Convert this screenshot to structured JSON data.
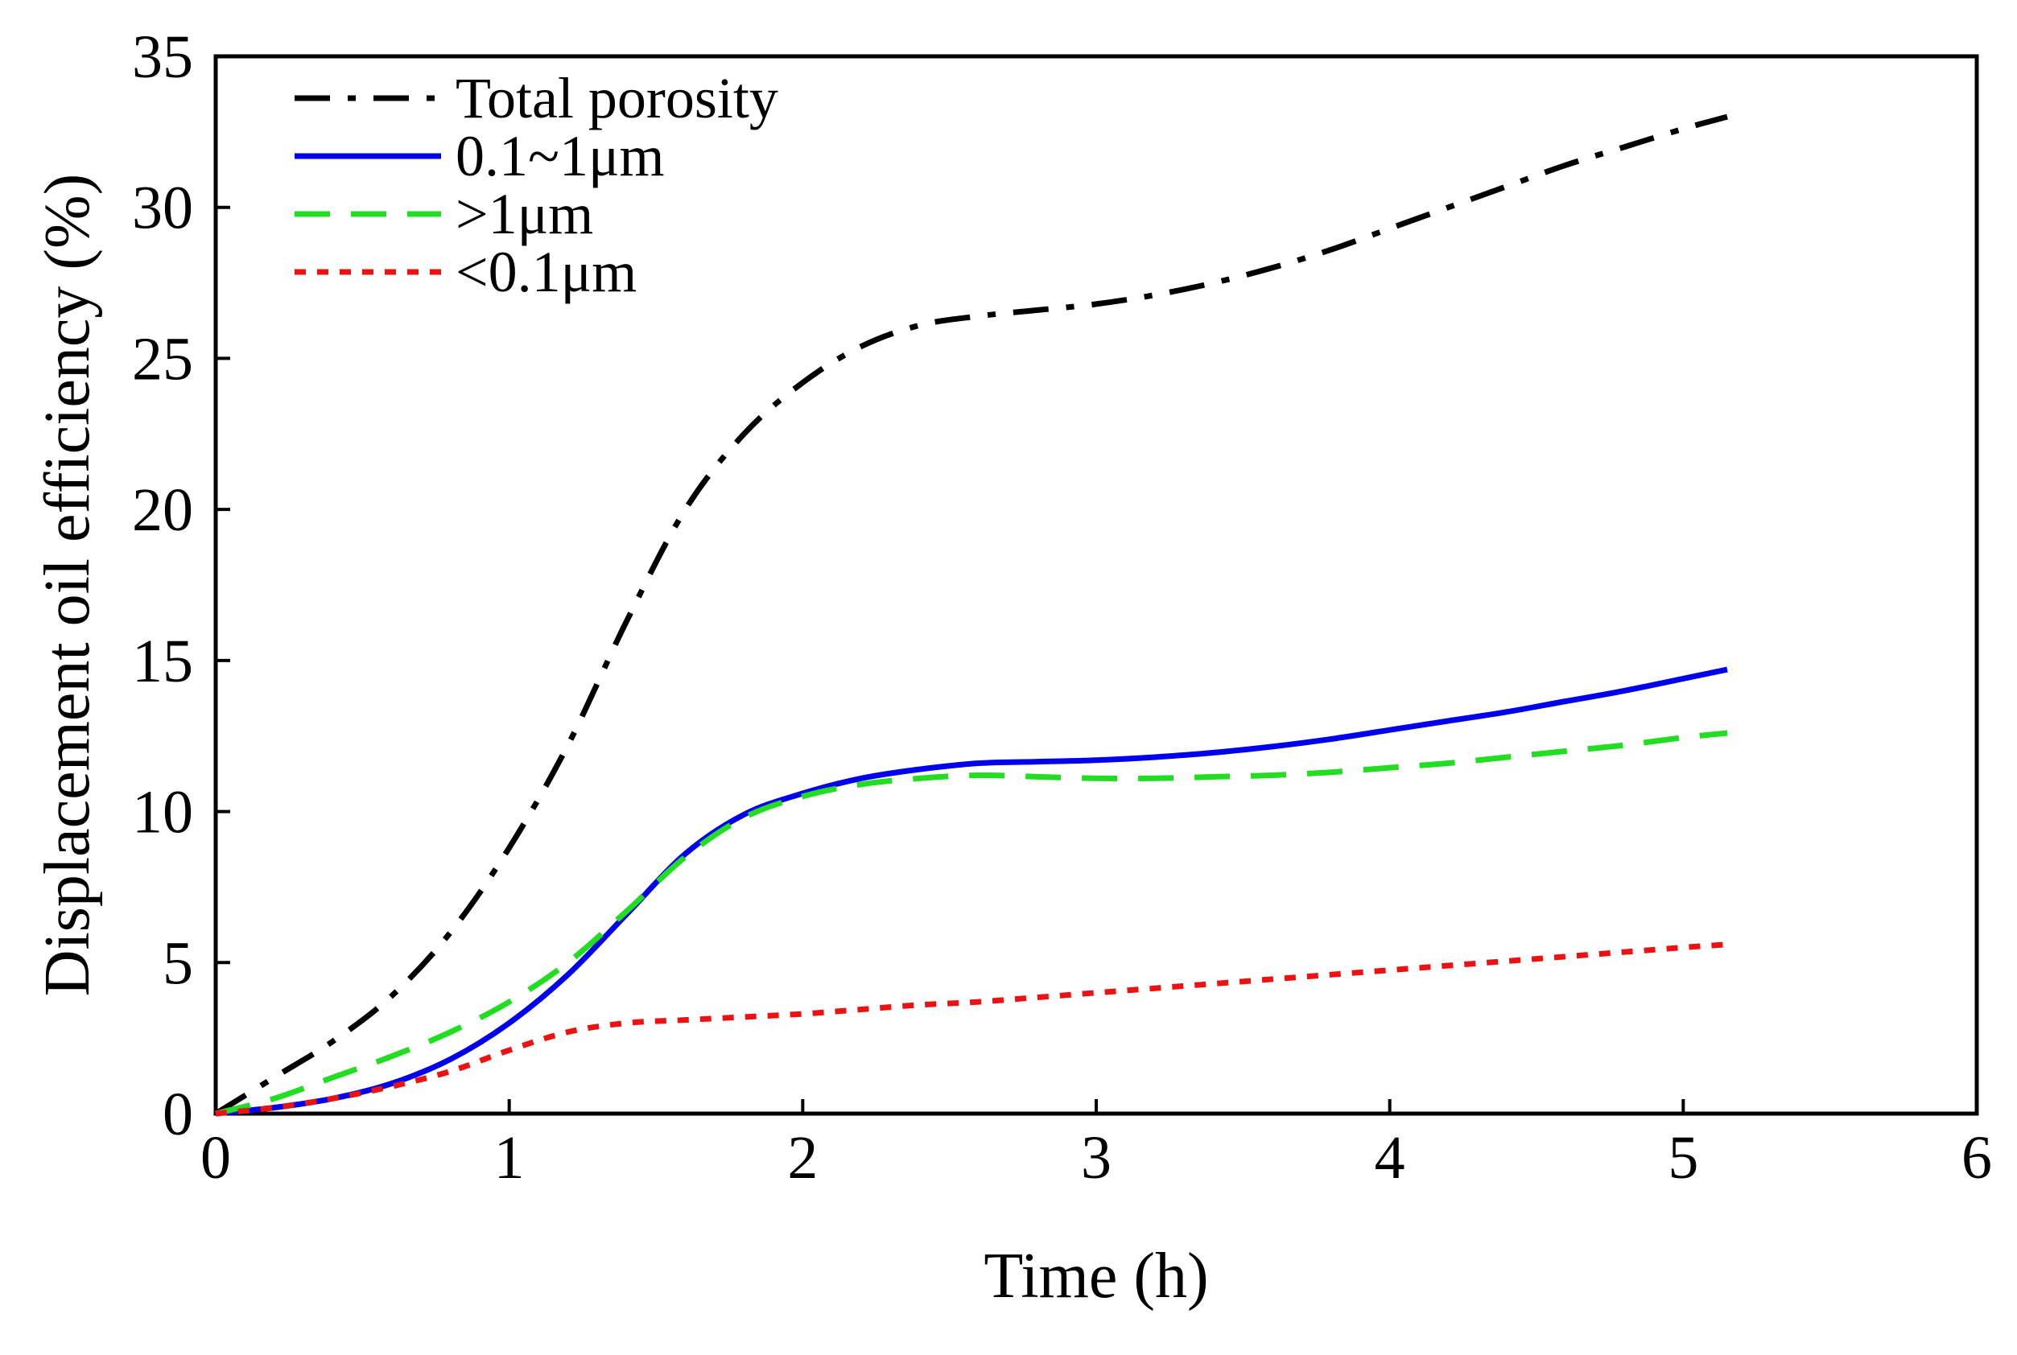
{
  "chart_data": {
    "type": "line",
    "title": "",
    "xlabel": "Time (h)",
    "ylabel": "Displacement oil efficiency (%)",
    "xlim": [
      0,
      6
    ],
    "ylim": [
      0,
      35
    ],
    "xticks": [
      0,
      1,
      2,
      3,
      4,
      5,
      6
    ],
    "yticks": [
      0,
      5,
      10,
      15,
      20,
      25,
      30,
      35
    ],
    "xtick_labels": [
      "0",
      "1",
      "2",
      "3",
      "4",
      "5",
      "6"
    ],
    "ytick_labels": [
      "0",
      "5",
      "10",
      "15",
      "20",
      "25",
      "30",
      "35"
    ],
    "grid": false,
    "legend_position": "top-left",
    "series": [
      {
        "name": "Total porosity",
        "color": "#000000",
        "style": "dashdot",
        "x": [
          0,
          0.2,
          0.4,
          0.6,
          0.8,
          1.0,
          1.2,
          1.4,
          1.6,
          1.8,
          2.0,
          2.2,
          2.4,
          2.6,
          2.8,
          3.0,
          3.2,
          3.4,
          3.6,
          3.8,
          4.0,
          4.2,
          4.4,
          4.6,
          4.8,
          5.0,
          5.15
        ],
        "y": [
          0,
          1.2,
          2.4,
          3.9,
          6.0,
          8.8,
          12.2,
          16.3,
          20.0,
          22.5,
          24.2,
          25.4,
          26.1,
          26.4,
          26.6,
          26.8,
          27.1,
          27.5,
          28.0,
          28.6,
          29.3,
          30.0,
          30.7,
          31.4,
          32.0,
          32.6,
          33.0
        ]
      },
      {
        "name": "0.1~1μm",
        "color": "#0000ee",
        "style": "solid",
        "x": [
          0,
          0.2,
          0.4,
          0.6,
          0.8,
          1.0,
          1.2,
          1.4,
          1.6,
          1.8,
          2.0,
          2.2,
          2.4,
          2.6,
          2.8,
          3.0,
          3.2,
          3.4,
          3.6,
          3.8,
          4.0,
          4.2,
          4.4,
          4.6,
          4.8,
          5.0,
          5.15
        ],
        "y": [
          0,
          0.2,
          0.5,
          1.0,
          1.8,
          3.0,
          4.6,
          6.6,
          8.6,
          9.9,
          10.6,
          11.1,
          11.4,
          11.6,
          11.65,
          11.7,
          11.8,
          11.95,
          12.15,
          12.4,
          12.7,
          13.0,
          13.3,
          13.65,
          14.0,
          14.4,
          14.7
        ]
      },
      {
        "name": ">1μm",
        "color": "#22dd22",
        "style": "dashed",
        "x": [
          0,
          0.2,
          0.4,
          0.6,
          0.8,
          1.0,
          1.2,
          1.4,
          1.6,
          1.8,
          2.0,
          2.2,
          2.4,
          2.6,
          2.8,
          3.0,
          3.2,
          3.4,
          3.6,
          3.8,
          4.0,
          4.2,
          4.4,
          4.6,
          4.8,
          5.0,
          5.15
        ],
        "y": [
          0,
          0.5,
          1.2,
          1.9,
          2.7,
          3.7,
          5.0,
          6.7,
          8.5,
          9.8,
          10.5,
          10.9,
          11.1,
          11.2,
          11.15,
          11.1,
          11.1,
          11.15,
          11.2,
          11.3,
          11.45,
          11.6,
          11.8,
          12.0,
          12.2,
          12.45,
          12.6
        ]
      },
      {
        "name": "<0.1μm",
        "color": "#ee1111",
        "style": "dotted",
        "x": [
          0,
          0.2,
          0.4,
          0.6,
          0.8,
          1.0,
          1.2,
          1.4,
          1.6,
          1.8,
          2.0,
          2.2,
          2.4,
          2.6,
          2.8,
          3.0,
          3.2,
          3.4,
          3.6,
          3.8,
          4.0,
          4.2,
          4.4,
          4.6,
          4.8,
          5.0,
          5.15
        ],
        "y": [
          0,
          0.2,
          0.5,
          0.9,
          1.4,
          2.1,
          2.7,
          3.0,
          3.1,
          3.2,
          3.3,
          3.45,
          3.6,
          3.7,
          3.85,
          4.0,
          4.15,
          4.3,
          4.45,
          4.6,
          4.75,
          4.9,
          5.05,
          5.2,
          5.35,
          5.5,
          5.6
        ]
      }
    ]
  }
}
